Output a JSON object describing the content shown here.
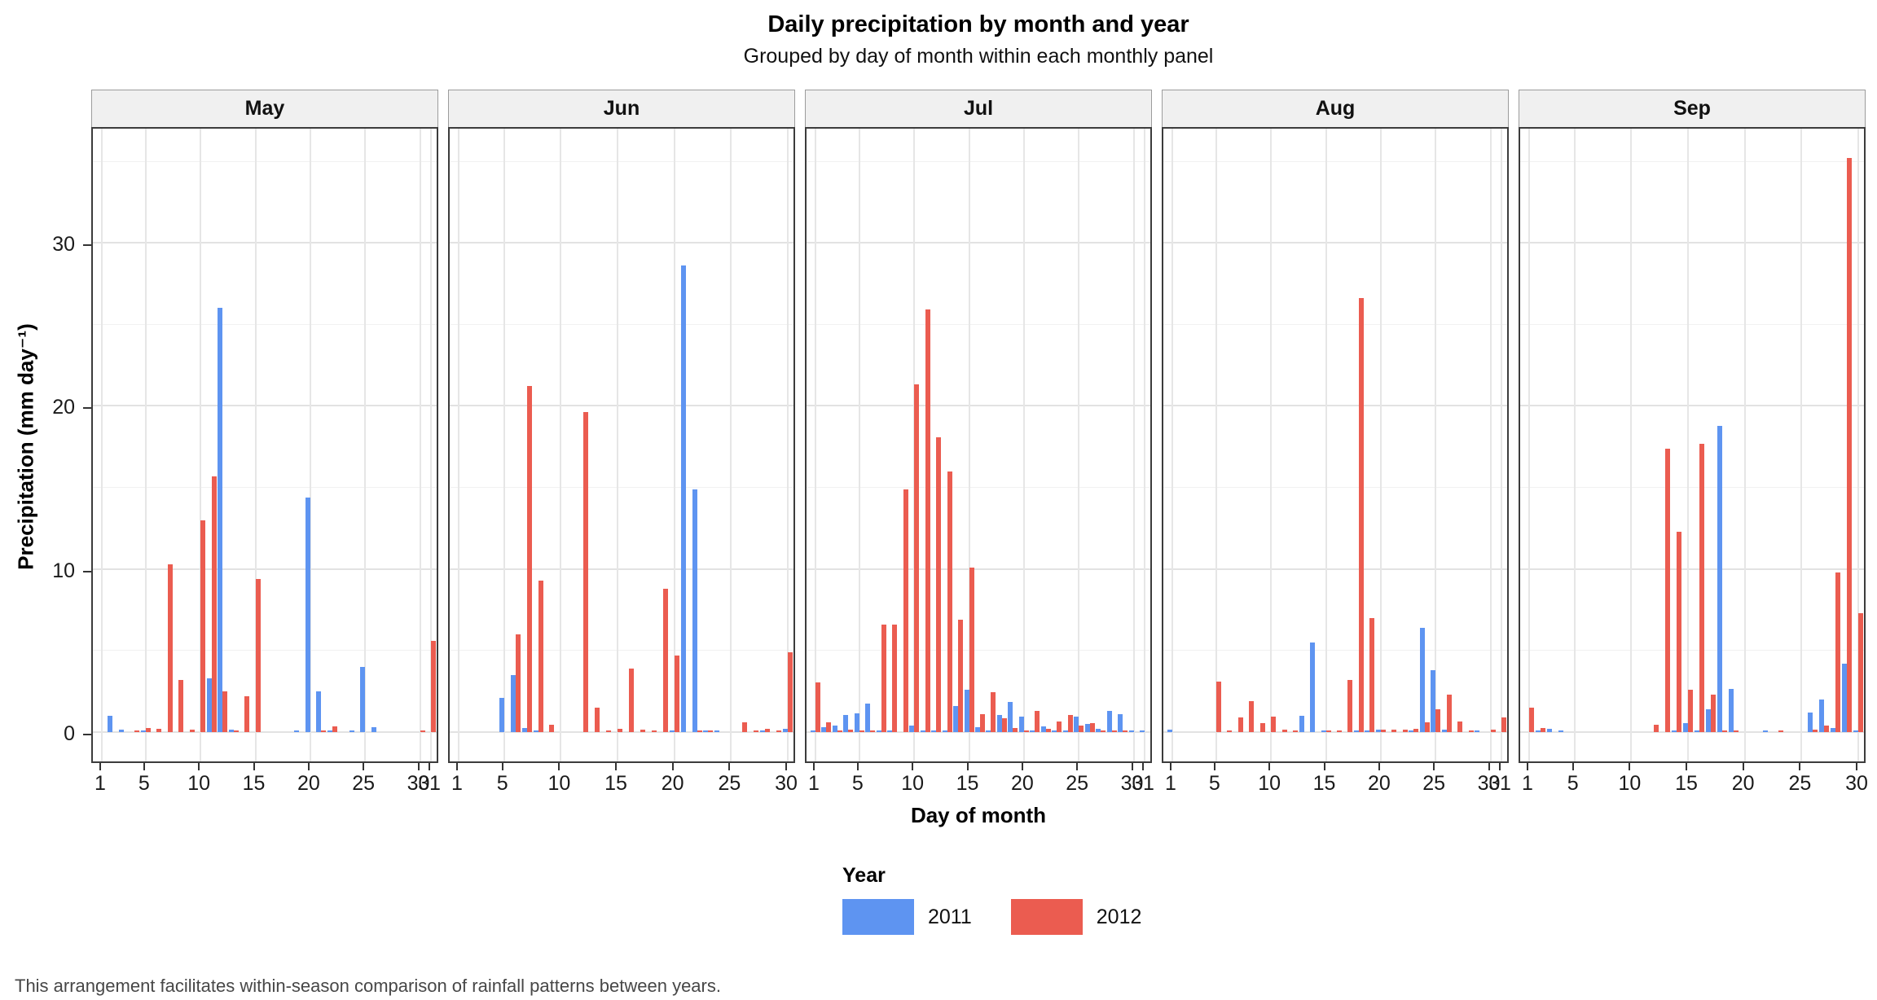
{
  "caption": "This arrangement facilitates within-season comparison of rainfall patterns between years.",
  "chart_data": {
    "type": "bar",
    "title": "Daily precipitation by month and year",
    "subtitle": "Grouped by day of month within each monthly panel",
    "xlabel": "Day of month",
    "ylabel": "Precipitation (mm day⁻¹)",
    "legend_title": "Year",
    "legend_position": "bottom",
    "grid": true,
    "ylim": [
      0,
      37
    ],
    "y_ticks": [
      0,
      10,
      20,
      30
    ],
    "y_minor_ticks": [
      5,
      15,
      25,
      35
    ],
    "series_order": [
      "2011",
      "2012"
    ],
    "series_colors": {
      "2011": "#5E94F1",
      "2012": "#EB5C50"
    },
    "panels": [
      {
        "month": "May",
        "days": 31,
        "x_ticks": [
          1,
          5,
          10,
          15,
          20,
          25,
          30,
          31
        ],
        "series": [
          {
            "name": "2011",
            "values": {
              "2": 1.0,
              "3": 0.15,
              "5": 0.1,
              "11": 3.3,
              "12": 26.0,
              "13": 0.15,
              "19": 0.1,
              "20": 14.4,
              "21": 2.5,
              "22": 0.1,
              "24": 0.1,
              "25": 4.0,
              "26": 0.3
            }
          },
          {
            "name": "2012",
            "values": {
              "4": 0.1,
              "5": 0.25,
              "6": 0.2,
              "7": 10.3,
              "8": 3.2,
              "9": 0.15,
              "10": 13.0,
              "11": 15.7,
              "12": 2.5,
              "13": 0.1,
              "14": 2.2,
              "15": 9.4,
              "21": 0.12,
              "22": 0.35,
              "30": 0.1,
              "31": 5.6
            }
          }
        ]
      },
      {
        "month": "Jun",
        "days": 30,
        "x_ticks": [
          1,
          5,
          10,
          15,
          20,
          25,
          30
        ],
        "series": [
          {
            "name": "2011",
            "values": {
              "5": 2.1,
              "6": 3.5,
              "7": 0.25,
              "8": 0.1,
              "20": 0.1,
              "21": 28.6,
              "22": 14.9,
              "23": 0.12,
              "24": 0.1,
              "28": 0.1,
              "30": 0.2
            }
          },
          {
            "name": "2012",
            "values": {
              "6": 6.0,
              "7": 21.2,
              "8": 9.3,
              "9": 0.45,
              "12": 19.6,
              "13": 1.5,
              "14": 0.1,
              "15": 0.2,
              "16": 3.9,
              "17": 0.15,
              "18": 0.12,
              "19": 8.8,
              "20": 4.7,
              "22": 0.1,
              "23": 0.1,
              "26": 0.6,
              "27": 0.1,
              "28": 0.2,
              "29": 0.12,
              "30": 4.9
            }
          }
        ]
      },
      {
        "month": "Jul",
        "days": 31,
        "x_ticks": [
          1,
          5,
          10,
          15,
          20,
          25,
          30,
          31
        ],
        "series": [
          {
            "name": "2011",
            "values": {
              "1": 0.1,
              "2": 0.3,
              "3": 0.4,
              "4": 1.05,
              "5": 1.15,
              "6": 1.75,
              "7": 0.1,
              "8": 0.1,
              "10": 0.4,
              "11": 0.1,
              "12": 0.12,
              "13": 0.1,
              "14": 1.6,
              "15": 2.6,
              "16": 0.3,
              "17": 0.1,
              "18": 1.05,
              "19": 1.85,
              "20": 0.95,
              "21": 0.1,
              "22": 0.35,
              "23": 0.1,
              "24": 0.05,
              "25": 0.95,
              "26": 0.5,
              "27": 0.22,
              "28": 1.3,
              "29": 1.1,
              "30": 0.1,
              "31": 0.1
            }
          },
          {
            "name": "2012",
            "values": {
              "1": 3.05,
              "2": 0.6,
              "3": 0.12,
              "4": 0.17,
              "5": 0.1,
              "6": 0.1,
              "7": 6.6,
              "8": 6.6,
              "9": 14.9,
              "10": 21.3,
              "11": 25.9,
              "12": 18.1,
              "13": 16.0,
              "14": 6.9,
              "15": 10.1,
              "16": 1.1,
              "17": 2.45,
              "18": 0.85,
              "19": 0.25,
              "20": 0.12,
              "21": 1.3,
              "22": 0.22,
              "23": 0.65,
              "24": 1.05,
              "25": 0.4,
              "26": 0.55,
              "27": 0.1,
              "28": 0.1,
              "29": 0.1
            }
          }
        ]
      },
      {
        "month": "Aug",
        "days": 31,
        "x_ticks": [
          1,
          5,
          10,
          15,
          20,
          25,
          30,
          31
        ],
        "series": [
          {
            "name": "2011",
            "values": {
              "1": 0.15,
              "13": 1.0,
              "14": 5.5,
              "15": 0.1,
              "18": 0.12,
              "19": 0.1,
              "20": 0.17,
              "23": 0.1,
              "24": 6.4,
              "25": 3.8,
              "26": 0.17,
              "29": 0.1
            }
          },
          {
            "name": "2012",
            "values": {
              "5": 3.1,
              "6": 0.1,
              "7": 0.9,
              "8": 1.9,
              "9": 0.55,
              "10": 0.95,
              "11": 0.17,
              "12": 0.1,
              "15": 0.12,
              "16": 0.12,
              "17": 3.2,
              "18": 26.6,
              "19": 7.0,
              "20": 0.17,
              "21": 0.17,
              "22": 0.17,
              "23": 0.22,
              "24": 0.6,
              "25": 1.4,
              "26": 2.3,
              "27": 0.65,
              "28": 0.1,
              "30": 0.17,
              "31": 0.9
            }
          }
        ]
      },
      {
        "month": "Sep",
        "days": 30,
        "x_ticks": [
          1,
          5,
          10,
          15,
          20,
          25,
          30
        ],
        "series": [
          {
            "name": "2011",
            "values": {
              "2": 0.12,
              "3": 0.22,
              "4": 0.12,
              "14": 0.1,
              "15": 0.55,
              "16": 0.1,
              "17": 1.4,
              "18": 18.8,
              "19": 2.65,
              "22": 0.12,
              "26": 1.2,
              "27": 2.0,
              "28": 0.25,
              "29": 4.2,
              "30": 0.1
            }
          },
          {
            "name": "2012",
            "values": {
              "1": 1.5,
              "2": 0.25,
              "12": 0.45,
              "13": 17.4,
              "14": 12.3,
              "15": 2.6,
              "16": 17.7,
              "17": 2.3,
              "18": 0.1,
              "19": 0.1,
              "23": 0.12,
              "26": 0.17,
              "27": 0.4,
              "28": 9.8,
              "29": 35.2,
              "30": 7.3
            }
          }
        ]
      }
    ]
  }
}
